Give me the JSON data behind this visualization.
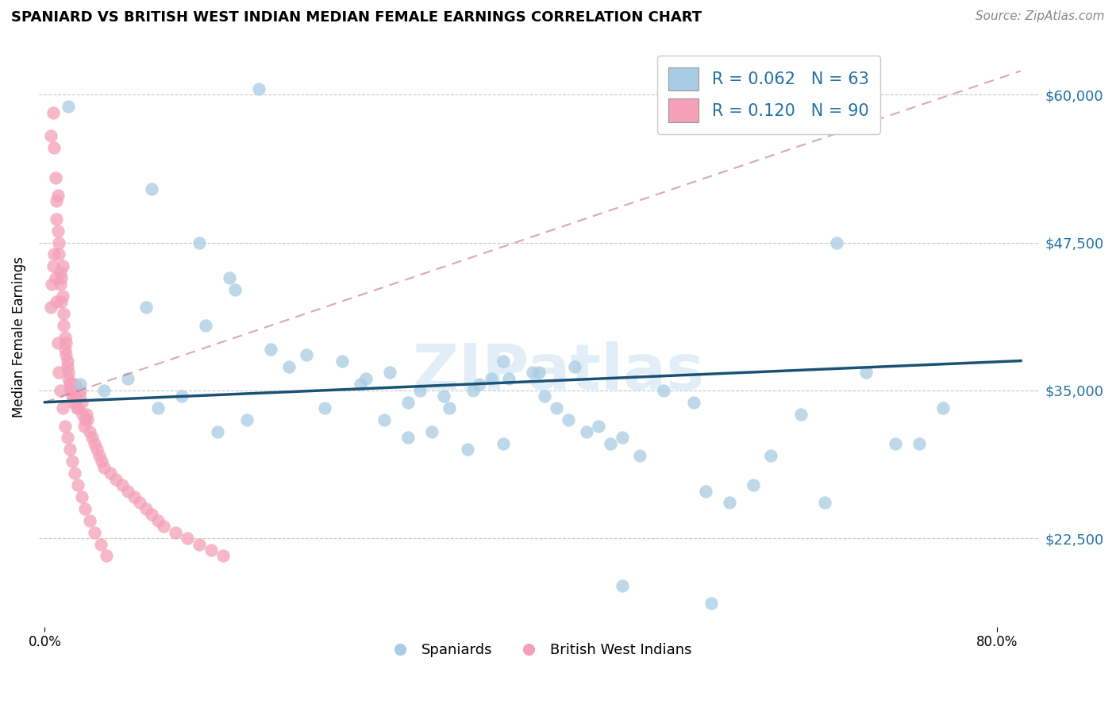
{
  "title": "SPANIARD VS BRITISH WEST INDIAN MEDIAN FEMALE EARNINGS CORRELATION CHART",
  "source": "Source: ZipAtlas.com",
  "ylabel": "Median Female Earnings",
  "ytick_labels": [
    "$22,500",
    "$35,000",
    "$47,500",
    "$60,000"
  ],
  "ytick_values": [
    22500,
    35000,
    47500,
    60000
  ],
  "ymin": 15000,
  "ymax": 64000,
  "xmin": -0.005,
  "xmax": 0.835,
  "legend_blue_R": "R = 0.062",
  "legend_blue_N": "N = 63",
  "legend_pink_R": "R = 0.120",
  "legend_pink_N": "N = 90",
  "watermark": "ZIPatlas",
  "blue_color": "#a8cce4",
  "pink_color": "#f4a0b8",
  "line_blue_color": "#1a5276",
  "line_pink_color": "#c0707a",
  "blue_trend_x": [
    0.0,
    0.82
  ],
  "blue_trend_y": [
    34000,
    37500
  ],
  "pink_trend_x": [
    0.0,
    0.82
  ],
  "pink_trend_y": [
    34000,
    62000
  ],
  "blue_scatter_x": [
    0.02,
    0.18,
    0.09,
    0.13,
    0.16,
    0.155,
    0.085,
    0.135,
    0.19,
    0.22,
    0.25,
    0.27,
    0.29,
    0.315,
    0.305,
    0.335,
    0.34,
    0.36,
    0.375,
    0.365,
    0.385,
    0.39,
    0.41,
    0.42,
    0.43,
    0.44,
    0.455,
    0.465,
    0.475,
    0.485,
    0.5,
    0.52,
    0.545,
    0.555,
    0.575,
    0.595,
    0.61,
    0.635,
    0.655,
    0.665,
    0.69,
    0.715,
    0.735,
    0.03,
    0.05,
    0.07,
    0.095,
    0.115,
    0.145,
    0.17,
    0.205,
    0.235,
    0.265,
    0.285,
    0.305,
    0.325,
    0.355,
    0.385,
    0.415,
    0.445,
    0.485,
    0.56,
    0.755
  ],
  "blue_scatter_y": [
    59000,
    60500,
    52000,
    47500,
    43500,
    44500,
    42000,
    40500,
    38500,
    38000,
    37500,
    36000,
    36500,
    35000,
    34000,
    34500,
    33500,
    35000,
    36000,
    35500,
    37500,
    36000,
    36500,
    34500,
    33500,
    32500,
    31500,
    32000,
    30500,
    31000,
    29500,
    35000,
    34000,
    26500,
    25500,
    27000,
    29500,
    33000,
    25500,
    47500,
    36500,
    30500,
    30500,
    35500,
    35000,
    36000,
    33500,
    34500,
    31500,
    32500,
    37000,
    33500,
    35500,
    32500,
    31000,
    31500,
    30000,
    30500,
    36500,
    37000,
    18500,
    17000,
    33500
  ],
  "pink_scatter_x": [
    0.005,
    0.007,
    0.008,
    0.009,
    0.01,
    0.01,
    0.011,
    0.011,
    0.012,
    0.012,
    0.013,
    0.013,
    0.014,
    0.014,
    0.015,
    0.015,
    0.016,
    0.016,
    0.017,
    0.017,
    0.018,
    0.018,
    0.019,
    0.019,
    0.02,
    0.02,
    0.021,
    0.021,
    0.022,
    0.022,
    0.023,
    0.023,
    0.024,
    0.025,
    0.025,
    0.026,
    0.027,
    0.028,
    0.029,
    0.03,
    0.031,
    0.032,
    0.033,
    0.034,
    0.035,
    0.036,
    0.038,
    0.04,
    0.042,
    0.044,
    0.046,
    0.048,
    0.05,
    0.055,
    0.06,
    0.065,
    0.07,
    0.075,
    0.08,
    0.085,
    0.09,
    0.095,
    0.1,
    0.11,
    0.12,
    0.13,
    0.14,
    0.15,
    0.005,
    0.006,
    0.007,
    0.008,
    0.009,
    0.01,
    0.011,
    0.012,
    0.013,
    0.015,
    0.017,
    0.019,
    0.021,
    0.023,
    0.025,
    0.028,
    0.031,
    0.034,
    0.038,
    0.042,
    0.047,
    0.052
  ],
  "pink_scatter_y": [
    56500,
    58500,
    55500,
    53000,
    51000,
    49500,
    51500,
    48500,
    46500,
    47500,
    45000,
    44000,
    42500,
    44500,
    45500,
    43000,
    41500,
    40500,
    39500,
    38500,
    39000,
    38000,
    37500,
    37000,
    36500,
    36000,
    35500,
    35500,
    35000,
    35500,
    35000,
    34500,
    34000,
    34500,
    35500,
    34000,
    33500,
    33500,
    34500,
    35000,
    34000,
    33000,
    32000,
    32500,
    33000,
    32500,
    31500,
    31000,
    30500,
    30000,
    29500,
    29000,
    28500,
    28000,
    27500,
    27000,
    26500,
    26000,
    25500,
    25000,
    24500,
    24000,
    23500,
    23000,
    22500,
    22000,
    21500,
    21000,
    42000,
    44000,
    45500,
    46500,
    44500,
    42500,
    39000,
    36500,
    35000,
    33500,
    32000,
    31000,
    30000,
    29000,
    28000,
    27000,
    26000,
    25000,
    24000,
    23000,
    22000,
    21000
  ]
}
